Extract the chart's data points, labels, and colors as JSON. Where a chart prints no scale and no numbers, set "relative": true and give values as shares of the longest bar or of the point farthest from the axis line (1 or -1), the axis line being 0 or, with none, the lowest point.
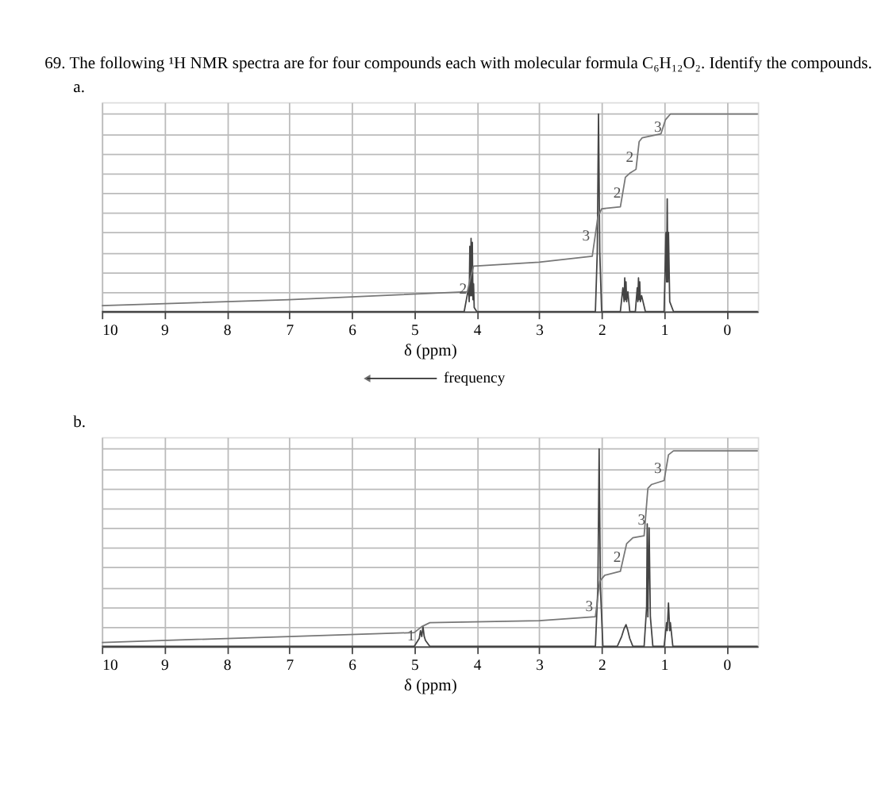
{
  "chart_data": [
    {
      "type": "line",
      "title": "69. The following ¹H NMR spectra are for four compounds each with molecular formula C₆H₁₂O₂. Identify the compounds.",
      "subtitle": "a.",
      "xlabel": "δ (ppm)",
      "relative": true,
      "xlim": [
        10,
        -0.5
      ],
      "xticks": [
        10,
        9,
        8,
        7,
        6,
        5,
        4,
        3,
        2,
        1,
        0
      ],
      "grid": true,
      "marker": "none",
      "line_style": "solid",
      "series": [
        {
          "color": "#444444",
          "x": [
            10,
            4.2,
            4.13,
            4.12,
            4.11,
            4.1,
            4.09,
            4.08,
            4.07,
            4.06,
            4.05,
            4.04,
            4.0,
            2.1,
            2.07,
            2.05,
            2.03,
            2.0,
            1.7,
            1.66,
            1.64,
            1.63,
            1.62,
            1.61,
            1.6,
            1.58,
            1.55,
            1.46,
            1.43,
            1.42,
            1.41,
            1.4,
            1.39,
            1.38,
            1.36,
            1.3,
            1.0,
            0.97,
            0.96,
            0.95,
            0.94,
            0.93,
            0.91,
            0.85,
            -0.5
          ],
          "values": [
            0,
            0,
            0.12,
            0.05,
            0.33,
            0.08,
            0.37,
            0.08,
            0.35,
            0.06,
            0.14,
            0.02,
            0,
            0,
            0.3,
            1,
            0.3,
            0,
            0,
            0.12,
            0.05,
            0.17,
            0.06,
            0.15,
            0.05,
            0.1,
            0,
            0,
            0.12,
            0.05,
            0.17,
            0.06,
            0.15,
            0.05,
            0.08,
            0,
            0,
            0.4,
            0.15,
            0.57,
            0.15,
            0.4,
            0.05,
            0,
            0
          ]
        },
        {
          "color": "#777777",
          "x": [
            10,
            7,
            4.15,
            4.1,
            4.05,
            3.0,
            2.15,
            2.06,
            2.0,
            1.7,
            1.62,
            1.55,
            1.45,
            1.4,
            1.35,
            1.05,
            0.98,
            0.9,
            -0.5
          ],
          "values": [
            0.03,
            0.06,
            0.1,
            0.17,
            0.23,
            0.25,
            0.28,
            0.48,
            0.52,
            0.53,
            0.68,
            0.7,
            0.72,
            0.86,
            0.88,
            0.9,
            0.97,
            1,
            1
          ]
        }
      ],
      "annotations": [
        "frequency",
        {
          "text": "2",
          "x": 4.22,
          "y": 0.11
        },
        {
          "text": "3",
          "x": 2.25,
          "y": 0.38
        },
        {
          "text": "2",
          "x": 1.75,
          "y": 0.6
        },
        {
          "text": "2",
          "x": 1.55,
          "y": 0.78
        },
        {
          "text": "3",
          "x": 1.1,
          "y": 0.93
        }
      ]
    },
    {
      "type": "line",
      "subtitle": "b.",
      "xlabel": "δ (ppm)",
      "relative": true,
      "xlim": [
        10,
        -0.5
      ],
      "xticks": [
        10,
        9,
        8,
        7,
        6,
        5,
        4,
        3,
        2,
        1,
        0
      ],
      "grid": true,
      "marker": "none",
      "line_style": "solid",
      "series": [
        {
          "color": "#444444",
          "x": [
            10,
            5.0,
            4.92,
            4.9,
            4.88,
            4.86,
            4.84,
            4.82,
            4.75,
            2.1,
            2.06,
            2.04,
            2.02,
            1.98,
            1.75,
            1.68,
            1.64,
            1.61,
            1.58,
            1.55,
            1.5,
            1.32,
            1.28,
            1.27,
            1.26,
            1.24,
            1.22,
            1.18,
            1.0,
            0.96,
            0.95,
            0.93,
            0.91,
            0.9,
            0.86,
            -0.5
          ],
          "values": [
            0,
            0,
            0.04,
            0.08,
            0.05,
            0.1,
            0.05,
            0.03,
            0,
            0,
            0.3,
            1,
            0.3,
            0,
            0,
            0.05,
            0.09,
            0.11,
            0.08,
            0.04,
            0,
            0,
            0.2,
            0.62,
            0.15,
            0.6,
            0.15,
            0,
            0,
            0.12,
            0.08,
            0.22,
            0.08,
            0.12,
            0,
            0
          ]
        },
        {
          "color": "#777777",
          "x": [
            10,
            7,
            5.0,
            4.88,
            4.75,
            3.0,
            2.1,
            2.03,
            1.95,
            1.7,
            1.6,
            1.5,
            1.32,
            1.26,
            1.2,
            1.0,
            0.93,
            0.85,
            -0.5
          ],
          "values": [
            0.02,
            0.05,
            0.07,
            0.1,
            0.12,
            0.13,
            0.15,
            0.33,
            0.36,
            0.38,
            0.52,
            0.55,
            0.56,
            0.8,
            0.82,
            0.84,
            0.97,
            0.99,
            0.99
          ]
        }
      ],
      "annotations": [
        {
          "text": "1",
          "x": 5.05,
          "y": 0.05
        },
        {
          "text": "3",
          "x": 2.2,
          "y": 0.2
        },
        {
          "text": "2",
          "x": 1.75,
          "y": 0.45
        },
        {
          "text": "3",
          "x": 1.36,
          "y": 0.64
        },
        {
          "text": "3",
          "x": 1.1,
          "y": 0.9
        }
      ]
    }
  ]
}
